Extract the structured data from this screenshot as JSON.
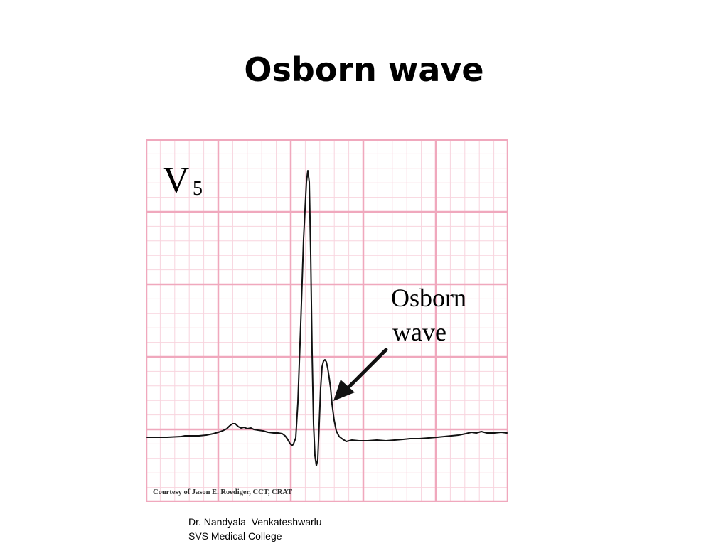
{
  "slide": {
    "title": "Osborn wave"
  },
  "ecg": {
    "lead_label_main": "V",
    "lead_label_sub": "5",
    "annotation_line1": "Osborn",
    "annotation_line2": "wave",
    "credit": "Courtesy of Jason E. Roediger, CCT, CRAT",
    "grid_major_color": "#f0a8bd",
    "grid_minor_color": "#f8d4de",
    "trace_color": "#111111"
  },
  "footer": {
    "line1": "Dr. Nandyala  Venkateshwarlu",
    "line2": "SVS Medical College"
  }
}
